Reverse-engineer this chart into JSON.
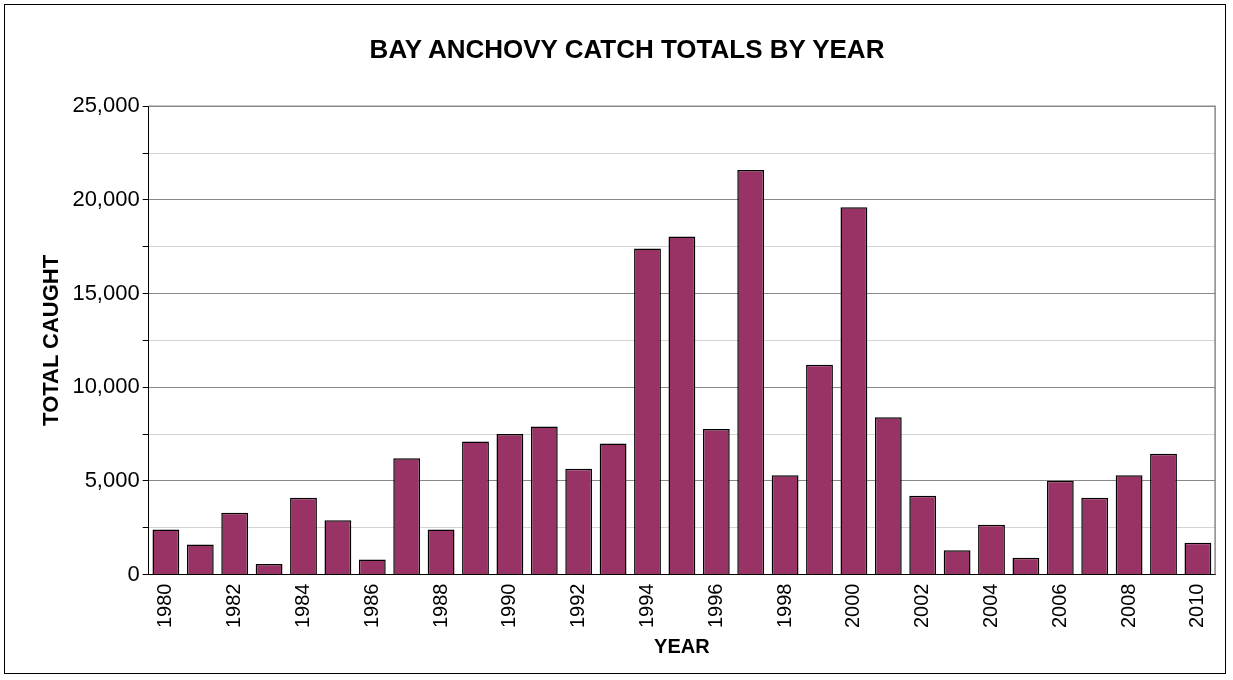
{
  "chart_data": {
    "type": "bar",
    "title": "BAY ANCHOVY CATCH TOTALS BY YEAR",
    "xlabel": "YEAR",
    "ylabel": "TOTAL CAUGHT",
    "categories": [
      "1980",
      null,
      "1982",
      null,
      "1984",
      null,
      "1986",
      null,
      "1988",
      null,
      "1990",
      null,
      "1992",
      null,
      "1994",
      null,
      "1996",
      null,
      "1998",
      null,
      "2000",
      null,
      "2002",
      null,
      "2004",
      null,
      "2006",
      null,
      "2008",
      null,
      "2010"
    ],
    "values": [
      2400,
      1600,
      3300,
      560,
      4100,
      2900,
      800,
      6200,
      2400,
      7100,
      7500,
      7900,
      5650,
      7000,
      17400,
      18050,
      7770,
      21600,
      5300,
      11200,
      19600,
      8400,
      4200,
      1300,
      2650,
      900,
      5000,
      4100,
      5300,
      6450,
      1700
    ],
    "color": "#993366",
    "ylim": [
      0,
      25000
    ],
    "yticks": [
      0,
      {
        "value": 2500,
        "label": null
      },
      {
        "value": 5000,
        "label": "5,000"
      },
      {
        "value": 7500,
        "label": null
      },
      {
        "value": 10000,
        "label": "10,000"
      },
      {
        "value": 12500,
        "label": null
      },
      {
        "value": 15000,
        "label": "15,000"
      },
      {
        "value": 17500,
        "label": null
      },
      {
        "value": 20000,
        "label": "20,000"
      },
      {
        "value": 22500,
        "label": null
      },
      {
        "value": 25000,
        "label": "25,000"
      }
    ],
    "grid": true
  }
}
